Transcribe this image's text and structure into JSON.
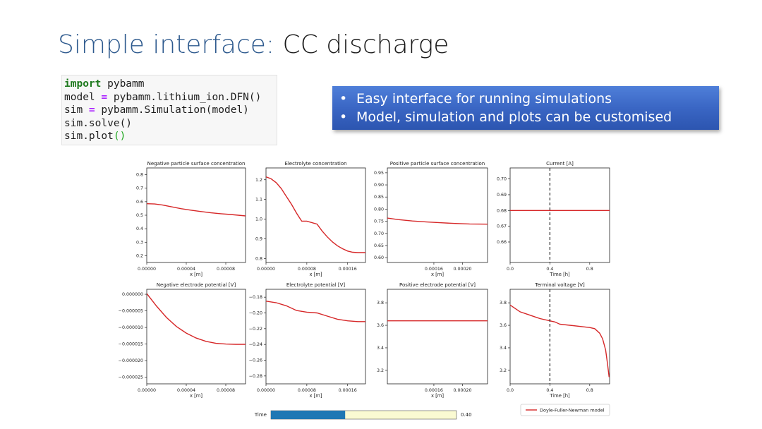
{
  "slide": {
    "title_part1": "Simple interface:",
    "title_part2": "CC discharge"
  },
  "code": {
    "line1_kw": "import",
    "line1_rest": " pybamm",
    "line2_a": "model ",
    "line2_op": "=",
    "line2_b": " pybamm.lithium_ion.DFN()",
    "line3_a": "sim ",
    "line3_op": "=",
    "line3_b": " pybamm.Simulation(model)",
    "line4": "sim.solve()",
    "line5_a": "sim.plot",
    "line5_paren": "()"
  },
  "bullets": [
    "Easy interface for running simulations",
    "Model, simulation and plots can be customised"
  ],
  "colors": {
    "line": "#d62728",
    "marker": "#222222",
    "slider_fill": "#1f77b4",
    "slider_track": "#fafad2"
  },
  "chart_data": [
    {
      "type": "line",
      "title": "Negative particle surface concentration",
      "xlabel": "x [m]",
      "ylabel": "",
      "xlim": [
        0,
        0.0001
      ],
      "ylim": [
        0.15,
        0.85
      ],
      "xticks": [
        0,
        4e-05,
        8e-05
      ],
      "xticklabels": [
        "0.00000",
        "0.00004",
        "0.00008"
      ],
      "yticks": [
        0.2,
        0.3,
        0.4,
        0.5,
        0.6,
        0.7,
        0.8
      ],
      "yticklabels": [
        "0.2",
        "0.3",
        "0.4",
        "0.5",
        "0.6",
        "0.7",
        "0.8"
      ],
      "x": [
        0,
        8e-06,
        1.6e-05,
        2.5e-05,
        3.5e-05,
        4.5e-05,
        5.5e-05,
        6.5e-05,
        7.5e-05,
        8.5e-05,
        0.0001
      ],
      "y": [
        0.585,
        0.583,
        0.575,
        0.562,
        0.548,
        0.537,
        0.527,
        0.518,
        0.511,
        0.505,
        0.495
      ]
    },
    {
      "type": "line",
      "title": "Electrolyte concentration",
      "xlabel": "x [m]",
      "ylabel": "",
      "xlim": [
        0,
        0.000195
      ],
      "ylim": [
        0.78,
        1.26
      ],
      "xticks": [
        0,
        8e-05,
        0.00016
      ],
      "xticklabels": [
        "0.00000",
        "0.00008",
        "0.00016"
      ],
      "yticks": [
        0.8,
        0.9,
        1.0,
        1.1,
        1.2
      ],
      "yticklabels": [
        "0.8",
        "0.9",
        "1.0",
        "1.1",
        "1.2"
      ],
      "x": [
        0,
        1e-05,
        2e-05,
        3e-05,
        4e-05,
        5e-05,
        6e-05,
        7e-05,
        8e-05,
        0.0001,
        0.00011,
        0.00012,
        0.00013,
        0.00014,
        0.00015,
        0.00016,
        0.00017,
        0.00018,
        0.000195
      ],
      "y": [
        1.215,
        1.205,
        1.185,
        1.155,
        1.115,
        1.075,
        1.03,
        0.99,
        0.99,
        0.975,
        0.94,
        0.91,
        0.885,
        0.865,
        0.85,
        0.838,
        0.832,
        0.83,
        0.83
      ]
    },
    {
      "type": "line",
      "title": "Positive particle surface concentration",
      "xlabel": "x [m]",
      "ylabel": "",
      "xlim": [
        9.5e-05,
        0.000235
      ],
      "ylim": [
        0.58,
        0.97
      ],
      "xticks": [
        0.00016,
        0.0002
      ],
      "xticklabels": [
        "0.00016",
        "0.00020"
      ],
      "yticks": [
        0.6,
        0.65,
        0.7,
        0.75,
        0.8,
        0.85,
        0.9,
        0.95
      ],
      "yticklabels": [
        "0.60",
        "0.65",
        "0.70",
        "0.75",
        "0.80",
        "0.85",
        "0.90",
        "0.95"
      ],
      "x": [
        9.5e-05,
        0.00011,
        0.00013,
        0.00015,
        0.00017,
        0.00019,
        0.00021,
        0.000235
      ],
      "y": [
        0.763,
        0.757,
        0.751,
        0.747,
        0.744,
        0.741,
        0.739,
        0.738
      ]
    },
    {
      "type": "line",
      "title": "Current [A]",
      "xlabel": "Time [h]",
      "ylabel": "",
      "xlim": [
        0,
        1.0
      ],
      "ylim": [
        0.647,
        0.707
      ],
      "xticks": [
        0,
        0.4,
        0.8
      ],
      "xticklabels": [
        "0.0",
        "0.4",
        "0.8"
      ],
      "yticks": [
        0.66,
        0.67,
        0.68,
        0.69,
        0.7
      ],
      "yticklabels": [
        "0.66",
        "0.67",
        "0.68",
        "0.69",
        "0.70"
      ],
      "x": [
        0,
        1.0
      ],
      "y": [
        0.68,
        0.68
      ],
      "time_marker": 0.4
    },
    {
      "type": "line",
      "title": "Negative electrode potential [V]",
      "xlabel": "x [m]",
      "ylabel": "",
      "xlim": [
        0,
        0.0001
      ],
      "ylim": [
        -2.7e-05,
        1.5e-06
      ],
      "xticks": [
        0,
        4e-05,
        8e-05
      ],
      "xticklabels": [
        "0.00000",
        "0.00004",
        "0.00008"
      ],
      "yticks": [
        0,
        -5e-06,
        -1e-05,
        -1.5e-05,
        -2e-05,
        -2.5e-05
      ],
      "yticklabels": [
        "0.000000",
        "−0.000005",
        "−0.000010",
        "−0.000015",
        "−0.000020",
        "−0.000025"
      ],
      "x": [
        0,
        1e-05,
        2e-05,
        3e-05,
        4e-05,
        5e-05,
        6e-05,
        7e-05,
        8e-05,
        9e-05,
        0.0001
      ],
      "y": [
        2e-07,
        -3.6e-06,
        -7e-06,
        -9.7e-06,
        -1.17e-05,
        -1.32e-05,
        -1.42e-05,
        -1.48e-05,
        -1.5e-05,
        -1.51e-05,
        -1.51e-05
      ]
    },
    {
      "type": "line",
      "title": "Electrolyte potential [V]",
      "xlabel": "x [m]",
      "ylabel": "",
      "xlim": [
        0,
        0.000195
      ],
      "ylim": [
        -0.29,
        -0.17
      ],
      "xticks": [
        0,
        8e-05,
        0.00016
      ],
      "xticklabels": [
        "0.00000",
        "0.00008",
        "0.00016"
      ],
      "yticks": [
        -0.18,
        -0.2,
        -0.22,
        -0.24,
        -0.26,
        -0.28
      ],
      "yticklabels": [
        "−0.18",
        "−0.20",
        "−0.22",
        "−0.24",
        "−0.26",
        "−0.28"
      ],
      "x": [
        0,
        2e-05,
        4e-05,
        6e-05,
        8e-05,
        0.0001,
        0.00012,
        0.00014,
        0.00016,
        0.00018,
        0.000195
      ],
      "y": [
        -0.185,
        -0.187,
        -0.191,
        -0.197,
        -0.199,
        -0.2,
        -0.204,
        -0.208,
        -0.21,
        -0.211,
        -0.211
      ]
    },
    {
      "type": "line",
      "title": "Positive electrode potential [V]",
      "xlabel": "x [m]",
      "ylabel": "",
      "xlim": [
        9.5e-05,
        0.000235
      ],
      "ylim": [
        3.08,
        3.92
      ],
      "xticks": [
        0.00016,
        0.0002
      ],
      "xticklabels": [
        "0.00016",
        "0.00020"
      ],
      "yticks": [
        3.2,
        3.4,
        3.6,
        3.8
      ],
      "yticklabels": [
        "3.2",
        "3.4",
        "3.6",
        "3.8"
      ],
      "x": [
        9.5e-05,
        0.000235
      ],
      "y": [
        3.64,
        3.64
      ]
    },
    {
      "type": "line",
      "title": "Terminal voltage [V]",
      "xlabel": "Time [h]",
      "ylabel": "",
      "xlim": [
        0,
        1.0
      ],
      "ylim": [
        3.08,
        3.92
      ],
      "xticks": [
        0,
        0.4,
        0.8
      ],
      "xticklabels": [
        "0.0",
        "0.4",
        "0.8"
      ],
      "yticks": [
        3.2,
        3.4,
        3.6,
        3.8
      ],
      "yticklabels": [
        "3.2",
        "3.4",
        "3.6",
        "3.8"
      ],
      "x": [
        0,
        0.05,
        0.1,
        0.2,
        0.3,
        0.4,
        0.45,
        0.5,
        0.6,
        0.7,
        0.8,
        0.85,
        0.9,
        0.93,
        0.96,
        0.98,
        0.995
      ],
      "y": [
        3.78,
        3.75,
        3.72,
        3.69,
        3.66,
        3.64,
        3.63,
        3.61,
        3.6,
        3.59,
        3.58,
        3.57,
        3.53,
        3.48,
        3.38,
        3.25,
        3.14
      ],
      "time_marker": 0.4
    }
  ],
  "legend": {
    "label": "Doyle-Fuller-Newman model"
  },
  "slider": {
    "label": "Time",
    "value": 0.4,
    "value_label": "0.40"
  }
}
